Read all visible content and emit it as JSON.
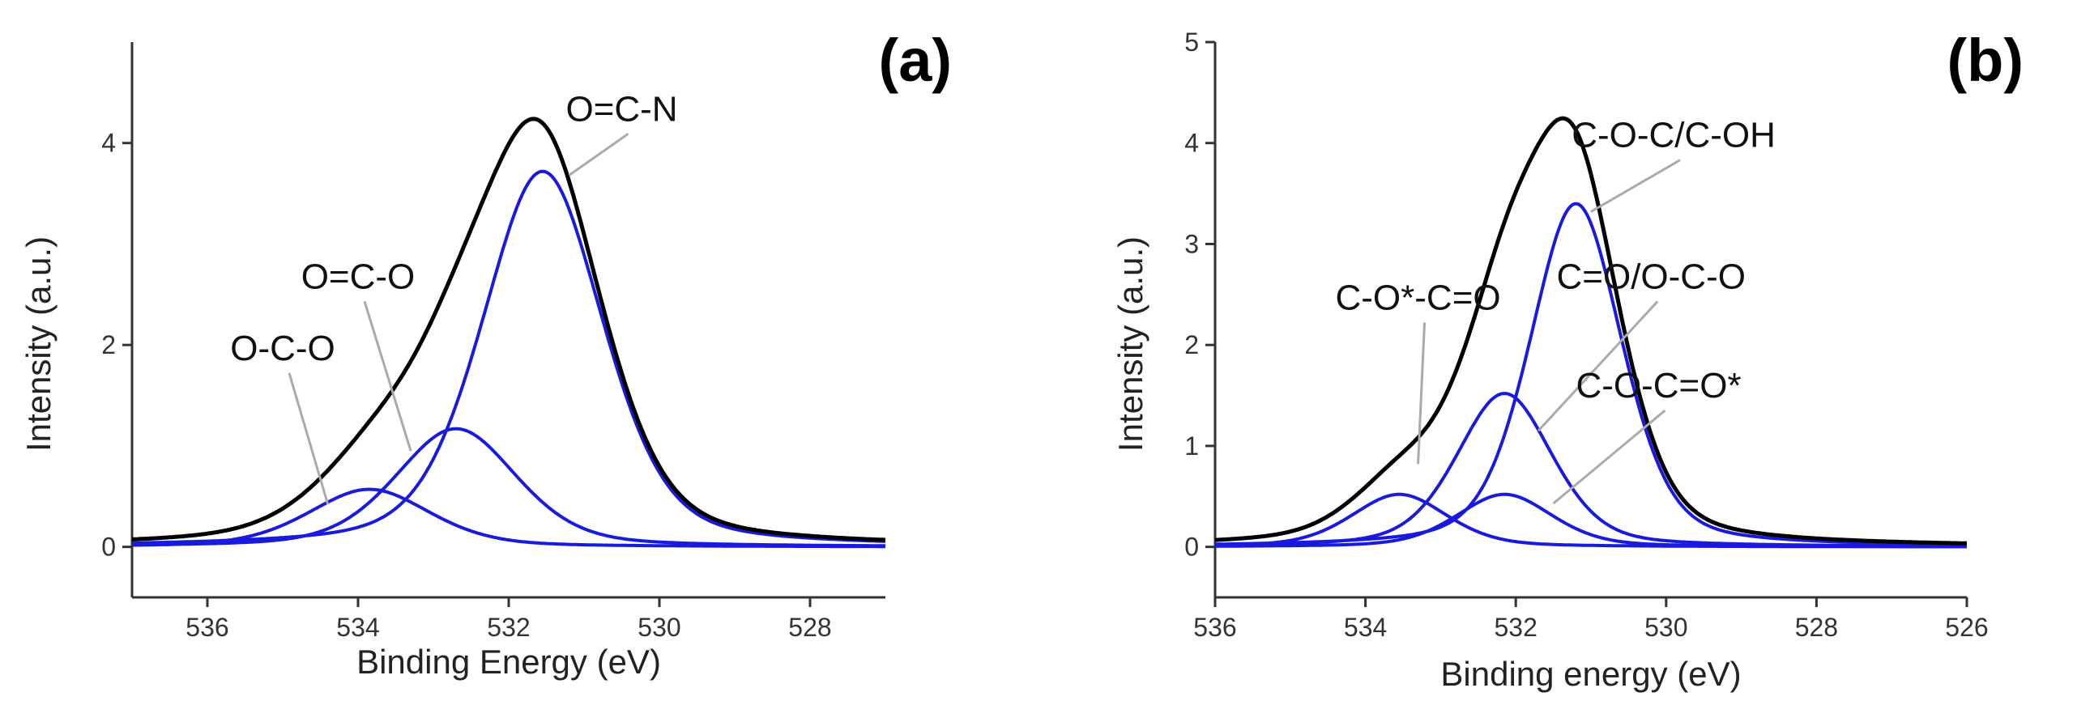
{
  "colors": {
    "envelope": "#000000",
    "component": "#1a1adc",
    "leader": "#aaaaaa",
    "axis": "#333333"
  },
  "chart_data": [
    {
      "type": "line",
      "panel_label": "(a)",
      "xlabel": "Binding Energy (eV)",
      "ylabel": "Intensity (a.u.)",
      "xlim": [
        537,
        527
      ],
      "ylim": [
        -0.5,
        5
      ],
      "xticks": [
        536,
        534,
        532,
        530,
        528
      ],
      "xtick_labels": [
        "536",
        "534",
        "532",
        "530",
        "528"
      ],
      "yticks": [
        0,
        2,
        4
      ],
      "ytick_labels": [
        "0",
        "2",
        "4"
      ],
      "series": [
        {
          "name": "Envelope",
          "role": "envelope",
          "type": "sum"
        },
        {
          "name": "O-C-O",
          "role": "component",
          "center": 533.85,
          "height": 0.57,
          "fwhm": 1.9
        },
        {
          "name": "O=C-O",
          "role": "component",
          "center": 532.7,
          "height": 1.17,
          "fwhm": 1.9
        },
        {
          "name": "O=C-N",
          "role": "component",
          "center": 531.55,
          "height": 3.72,
          "fwhm": 1.9
        }
      ],
      "annotations": [
        {
          "text": "O=C-N",
          "label_x": 530.5,
          "label_y": 4.14,
          "target_x": 531.2,
          "target_y": 3.68
        },
        {
          "text": "O=C-O",
          "label_x": 534.0,
          "label_y": 2.48,
          "target_x": 533.3,
          "target_y": 0.95
        },
        {
          "text": "O-C-O",
          "label_x": 535.0,
          "label_y": 1.77,
          "target_x": 534.4,
          "target_y": 0.42
        }
      ]
    },
    {
      "type": "line",
      "panel_label": "(b)",
      "xlabel": "Binding energy (eV)",
      "ylabel": "Intensity (a.u.)",
      "xlim": [
        536,
        526
      ],
      "ylim": [
        -0.5,
        5
      ],
      "xticks": [
        536,
        534,
        532,
        530,
        528,
        526
      ],
      "xtick_labels": [
        "536",
        "534",
        "532",
        "530",
        "528",
        "526"
      ],
      "yticks": [
        0,
        1,
        2,
        3,
        4,
        5
      ],
      "ytick_labels": [
        "0",
        "1",
        "2",
        "3",
        "4",
        "5"
      ],
      "series": [
        {
          "name": "Envelope",
          "role": "envelope",
          "type": "sum"
        },
        {
          "name": "C-O*-C=O",
          "role": "component",
          "center": 533.55,
          "height": 0.52,
          "fwhm": 1.5
        },
        {
          "name": "C=O/O-C-O",
          "role": "component",
          "center": 532.15,
          "height": 1.52,
          "fwhm": 1.5
        },
        {
          "name": "C-O-C=O*",
          "role": "component",
          "center": 532.15,
          "height": 0.52,
          "fwhm": 1.5
        },
        {
          "name": "C-O-C/C-OH",
          "role": "component",
          "center": 531.2,
          "height": 3.4,
          "fwhm": 1.45
        }
      ],
      "annotations": [
        {
          "text": "C-O-C/C-OH",
          "label_x": 529.9,
          "label_y": 3.88,
          "target_x": 531.0,
          "target_y": 3.32
        },
        {
          "text": "C=O/O-C-O",
          "label_x": 530.2,
          "label_y": 2.48,
          "target_x": 531.7,
          "target_y": 1.15
        },
        {
          "text": "C-O*-C=O",
          "label_x": 533.3,
          "label_y": 2.27,
          "target_x": 533.3,
          "target_y": 0.82
        },
        {
          "text": "C-O-C=O*",
          "label_x": 530.1,
          "label_y": 1.4,
          "target_x": 531.5,
          "target_y": 0.43
        }
      ]
    }
  ]
}
